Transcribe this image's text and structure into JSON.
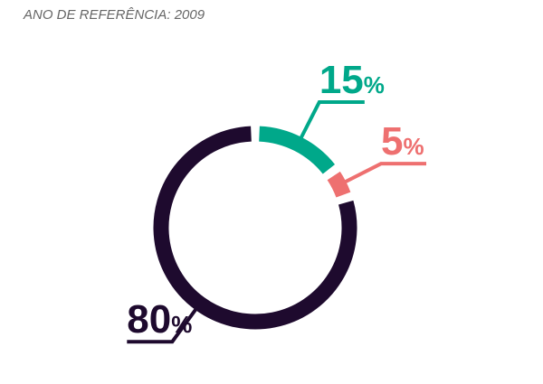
{
  "chart_data": {
    "type": "donut",
    "title": "ANO DE REFERÊNCIA: 2009",
    "values": [
      15,
      5,
      80
    ],
    "value_labels": [
      "15%",
      "5%",
      "80%"
    ],
    "colors": [
      "#00a88a",
      "#ee7070",
      "#1e0a2e"
    ]
  }
}
